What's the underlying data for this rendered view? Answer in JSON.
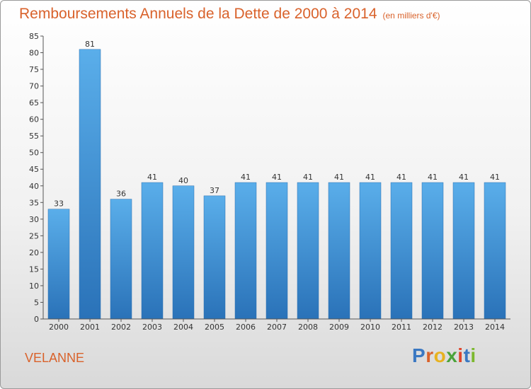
{
  "colors": {
    "accent": "#d9622b",
    "bar": "#3d8fd6"
  },
  "footer": {
    "commune": "VELANNE"
  },
  "logo": {
    "text": "Proxiti",
    "colors": [
      "#3a78c2",
      "#d9622b",
      "#e8b21f",
      "#4aa33a",
      "#e0452b",
      "#3a78c2",
      "#7cb82f"
    ]
  },
  "chart_data": {
    "type": "bar",
    "title": "Remboursements Annuels de la Dette de 2000 à 2014",
    "subtitle": "(en milliers d'€)",
    "xlabel": "",
    "ylabel": "",
    "categories": [
      "2000",
      "2001",
      "2002",
      "2003",
      "2004",
      "2005",
      "2006",
      "2007",
      "2008",
      "2009",
      "2010",
      "2011",
      "2012",
      "2013",
      "2014"
    ],
    "values": [
      33,
      81,
      36,
      41,
      40,
      37,
      41,
      41,
      41,
      41,
      41,
      41,
      41,
      41,
      41
    ],
    "ylim": [
      0,
      85
    ],
    "yticks": [
      0,
      5,
      10,
      15,
      20,
      25,
      30,
      35,
      40,
      45,
      50,
      55,
      60,
      65,
      70,
      75,
      80,
      85
    ],
    "grid": false,
    "legend": "none"
  }
}
